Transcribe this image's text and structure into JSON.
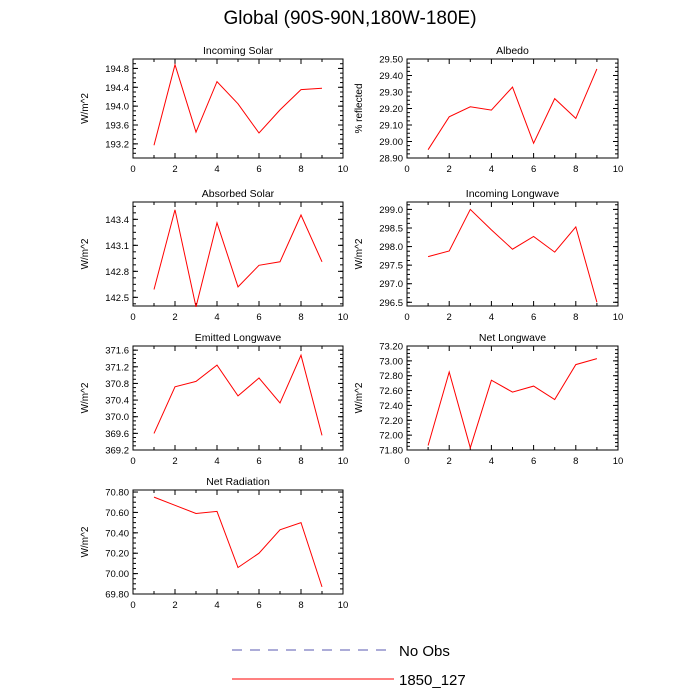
{
  "title": "Global (90S-90N,180W-180E)",
  "chart_data": [
    {
      "type": "line",
      "title": "Incoming Solar",
      "ylabel": "W/m^2",
      "xlim": [
        0,
        10
      ],
      "ylim": [
        192.9,
        195.0
      ],
      "xticks": [
        0,
        2,
        4,
        6,
        8,
        10
      ],
      "yticks": [
        193.2,
        193.6,
        194.0,
        194.4,
        194.8
      ],
      "ytick_labels": [
        "193.2",
        "193.6",
        "194.0",
        "194.4",
        "194.8"
      ],
      "series": [
        {
          "name": "1850_127",
          "color": "#ff0000",
          "x": [
            1,
            2,
            3,
            4,
            5,
            6,
            7,
            8,
            9
          ],
          "y": [
            193.17,
            194.88,
            193.45,
            194.52,
            194.05,
            193.43,
            193.92,
            194.35,
            194.38
          ]
        }
      ]
    },
    {
      "type": "line",
      "title": "Albedo",
      "ylabel": "% reflected",
      "xlim": [
        0,
        10
      ],
      "ylim": [
        28.9,
        29.5
      ],
      "xticks": [
        0,
        2,
        4,
        6,
        8,
        10
      ],
      "yticks": [
        28.9,
        29.0,
        29.1,
        29.2,
        29.3,
        29.4,
        29.5
      ],
      "ytick_labels": [
        "28.90",
        "29.00",
        "29.10",
        "29.20",
        "29.30",
        "29.40",
        "29.50"
      ],
      "series": [
        {
          "name": "1850_127",
          "color": "#ff0000",
          "x": [
            1,
            2,
            3,
            4,
            5,
            6,
            7,
            8,
            9
          ],
          "y": [
            28.95,
            29.15,
            29.21,
            29.19,
            29.33,
            28.99,
            29.26,
            29.14,
            29.44
          ]
        }
      ]
    },
    {
      "type": "line",
      "title": "Absorbed Solar",
      "ylabel": "W/m^2",
      "xlim": [
        0,
        10
      ],
      "ylim": [
        142.4,
        143.6
      ],
      "xticks": [
        0,
        2,
        4,
        6,
        8,
        10
      ],
      "yticks": [
        142.5,
        142.8,
        143.1,
        143.4
      ],
      "ytick_labels": [
        "142.5",
        "142.8",
        "143.1",
        "143.4"
      ],
      "series": [
        {
          "name": "1850_127",
          "color": "#ff0000",
          "x": [
            1,
            2,
            3,
            4,
            5,
            6,
            7,
            8,
            9
          ],
          "y": [
            142.59,
            143.51,
            142.39,
            143.36,
            142.62,
            142.87,
            142.91,
            143.45,
            142.91
          ]
        }
      ]
    },
    {
      "type": "line",
      "title": "Incoming Longwave",
      "ylabel": "W/m^2",
      "xlim": [
        0,
        10
      ],
      "ylim": [
        296.4,
        299.2
      ],
      "xticks": [
        0,
        2,
        4,
        6,
        8,
        10
      ],
      "yticks": [
        296.5,
        297.0,
        297.5,
        298.0,
        298.5,
        299.0
      ],
      "ytick_labels": [
        "296.5",
        "297.0",
        "297.5",
        "298.0",
        "298.5",
        "299.0"
      ],
      "series": [
        {
          "name": "1850_127",
          "color": "#ff0000",
          "x": [
            1,
            2,
            3,
            4,
            5,
            6,
            7,
            8,
            9
          ],
          "y": [
            297.73,
            297.88,
            299.0,
            298.45,
            297.93,
            298.27,
            297.85,
            298.53,
            296.5
          ]
        }
      ]
    },
    {
      "type": "line",
      "title": "Emitted Longwave",
      "ylabel": "W/m^2",
      "xlim": [
        0,
        10
      ],
      "ylim": [
        369.2,
        371.7
      ],
      "xticks": [
        0,
        2,
        4,
        6,
        8,
        10
      ],
      "yticks": [
        369.2,
        369.6,
        370.0,
        370.4,
        370.8,
        371.2,
        371.6
      ],
      "ytick_labels": [
        "369.2",
        "369.6",
        "370.0",
        "370.4",
        "370.8",
        "371.2",
        "371.6"
      ],
      "series": [
        {
          "name": "1850_127",
          "color": "#ff0000",
          "x": [
            1,
            2,
            3,
            4,
            5,
            6,
            7,
            8,
            9
          ],
          "y": [
            369.6,
            370.72,
            370.85,
            371.24,
            370.5,
            370.93,
            370.33,
            371.48,
            369.55
          ]
        }
      ]
    },
    {
      "type": "line",
      "title": "Net Longwave",
      "ylabel": "W/m^2",
      "xlim": [
        0,
        10
      ],
      "ylim": [
        71.8,
        73.2
      ],
      "xticks": [
        0,
        2,
        4,
        6,
        8,
        10
      ],
      "yticks": [
        71.8,
        72.0,
        72.2,
        72.4,
        72.6,
        72.8,
        73.0,
        73.2
      ],
      "ytick_labels": [
        "71.80",
        "72.00",
        "72.20",
        "72.40",
        "72.60",
        "72.80",
        "73.00",
        "73.20"
      ],
      "series": [
        {
          "name": "1850_127",
          "color": "#ff0000",
          "x": [
            1,
            2,
            3,
            4,
            5,
            6,
            7,
            8,
            9
          ],
          "y": [
            71.86,
            72.85,
            71.83,
            72.74,
            72.58,
            72.66,
            72.48,
            72.95,
            73.03
          ]
        }
      ]
    },
    {
      "type": "line",
      "title": "Net Radiation",
      "ylabel": "W/m^2",
      "xlim": [
        0,
        10
      ],
      "ylim": [
        69.8,
        70.82
      ],
      "xticks": [
        0,
        2,
        4,
        6,
        8,
        10
      ],
      "yticks": [
        69.8,
        70.0,
        70.2,
        70.4,
        70.6,
        70.8
      ],
      "ytick_labels": [
        "69.80",
        "70.00",
        "70.20",
        "70.40",
        "70.60",
        "70.80"
      ],
      "series": [
        {
          "name": "1850_127",
          "color": "#ff0000",
          "x": [
            1,
            2,
            3,
            4,
            5,
            6,
            7,
            8,
            9
          ],
          "y": [
            70.75,
            70.67,
            70.59,
            70.61,
            70.06,
            70.2,
            70.43,
            70.5,
            69.87
          ]
        }
      ]
    }
  ],
  "legend": [
    {
      "label": "No Obs",
      "color": "#5a5ab0",
      "style": "dashed"
    },
    {
      "label": "1850_127",
      "color": "#ff0000",
      "style": "solid"
    }
  ]
}
